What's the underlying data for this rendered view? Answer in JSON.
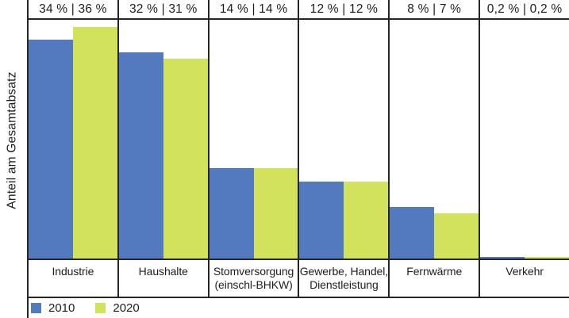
{
  "chart_data": {
    "type": "bar",
    "title": "",
    "xlabel": "",
    "ylabel": "Anteil am Gesamtabsatz",
    "unit": "%",
    "categories": [
      "Industrie",
      "Haushalte",
      "Stomversorgung (einschl-BHKW)",
      "Gewerbe, Handel, Dienstleistung",
      "Fernwärme",
      "Verkehr"
    ],
    "category_lines": [
      [
        "Industrie"
      ],
      [
        "Haushalte"
      ],
      [
        "Stomversorgung",
        "(einschl-BHKW)"
      ],
      [
        "Gewerbe, Handel,",
        "Dienstleistung"
      ],
      [
        "Fernwärme"
      ],
      [
        "Verkehr"
      ]
    ],
    "column_value_labels": [
      "34 % | 36 %",
      "32 % | 31 %",
      "14 % | 14 %",
      "12 % | 12 %",
      "8 % | 7 %",
      "0,2 % | 0,2 %"
    ],
    "series": [
      {
        "name": "2010",
        "color": "#5379be",
        "values": [
          34,
          32,
          14,
          12,
          8,
          0.2
        ]
      },
      {
        "name": "2020",
        "color": "#d2e25c",
        "values": [
          36,
          31,
          14,
          12,
          7,
          0.2
        ]
      }
    ],
    "ylim": [
      0,
      37.3
    ],
    "grid": "vertical column separators only, no horizontal gridlines",
    "legend_position": "bottom-left"
  },
  "colors": {
    "background": "#ffffff",
    "line": "#262626",
    "text": "#1d1d1d",
    "series_2010": "#5379be",
    "series_2020": "#d2e25c"
  }
}
